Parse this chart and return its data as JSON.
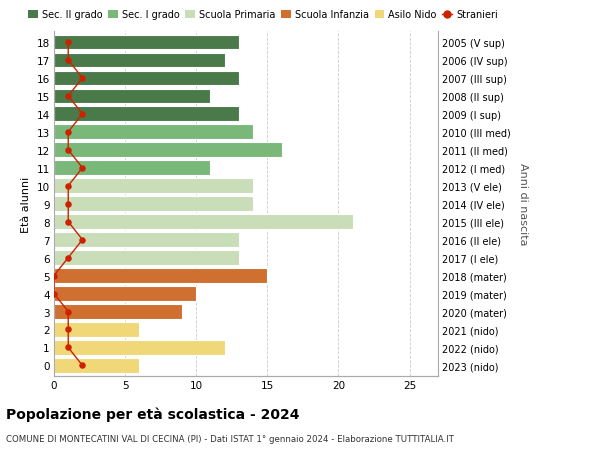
{
  "ages": [
    18,
    17,
    16,
    15,
    14,
    13,
    12,
    11,
    10,
    9,
    8,
    7,
    6,
    5,
    4,
    3,
    2,
    1,
    0
  ],
  "years": [
    "2005 (V sup)",
    "2006 (IV sup)",
    "2007 (III sup)",
    "2008 (II sup)",
    "2009 (I sup)",
    "2010 (III med)",
    "2011 (II med)",
    "2012 (I med)",
    "2013 (V ele)",
    "2014 (IV ele)",
    "2015 (III ele)",
    "2016 (II ele)",
    "2017 (I ele)",
    "2018 (mater)",
    "2019 (mater)",
    "2020 (mater)",
    "2021 (nido)",
    "2022 (nido)",
    "2023 (nido)"
  ],
  "bar_values": [
    13,
    12,
    13,
    11,
    13,
    14,
    16,
    11,
    14,
    14,
    21,
    13,
    13,
    15,
    10,
    9,
    6,
    12,
    6
  ],
  "bar_colors": [
    "#4a7a4a",
    "#4a7a4a",
    "#4a7a4a",
    "#4a7a4a",
    "#4a7a4a",
    "#7ab87a",
    "#7ab87a",
    "#7ab87a",
    "#c8ddb8",
    "#c8ddb8",
    "#c8ddb8",
    "#c8ddb8",
    "#c8ddb8",
    "#d07030",
    "#d07030",
    "#d07030",
    "#f0d878",
    "#f0d878",
    "#f0d878"
  ],
  "stranieri_values": [
    1,
    1,
    2,
    1,
    2,
    1,
    1,
    2,
    1,
    1,
    1,
    2,
    1,
    0,
    0,
    1,
    1,
    1,
    2
  ],
  "stranieri_color": "#cc2200",
  "xlim": [
    0,
    27
  ],
  "xticks": [
    0,
    5,
    10,
    15,
    20,
    25
  ],
  "title": "Popolazione per età scolastica - 2024",
  "subtitle": "COMUNE DI MONTECATINI VAL DI CECINA (PI) - Dati ISTAT 1° gennaio 2024 - Elaborazione TUTTITALIA.IT",
  "ylabel_left": "Età alunni",
  "ylabel_right": "Anni di nascita",
  "legend_items": [
    {
      "label": "Sec. II grado",
      "color": "#4a7a4a"
    },
    {
      "label": "Sec. I grado",
      "color": "#7ab87a"
    },
    {
      "label": "Scuola Primaria",
      "color": "#c8ddb8"
    },
    {
      "label": "Scuola Infanzia",
      "color": "#d07030"
    },
    {
      "label": "Asilo Nido",
      "color": "#f0d878"
    },
    {
      "label": "Stranieri",
      "color": "#cc2200"
    }
  ],
  "bg_color": "#ffffff",
  "grid_color": "#cccccc",
  "bar_height": 0.82
}
